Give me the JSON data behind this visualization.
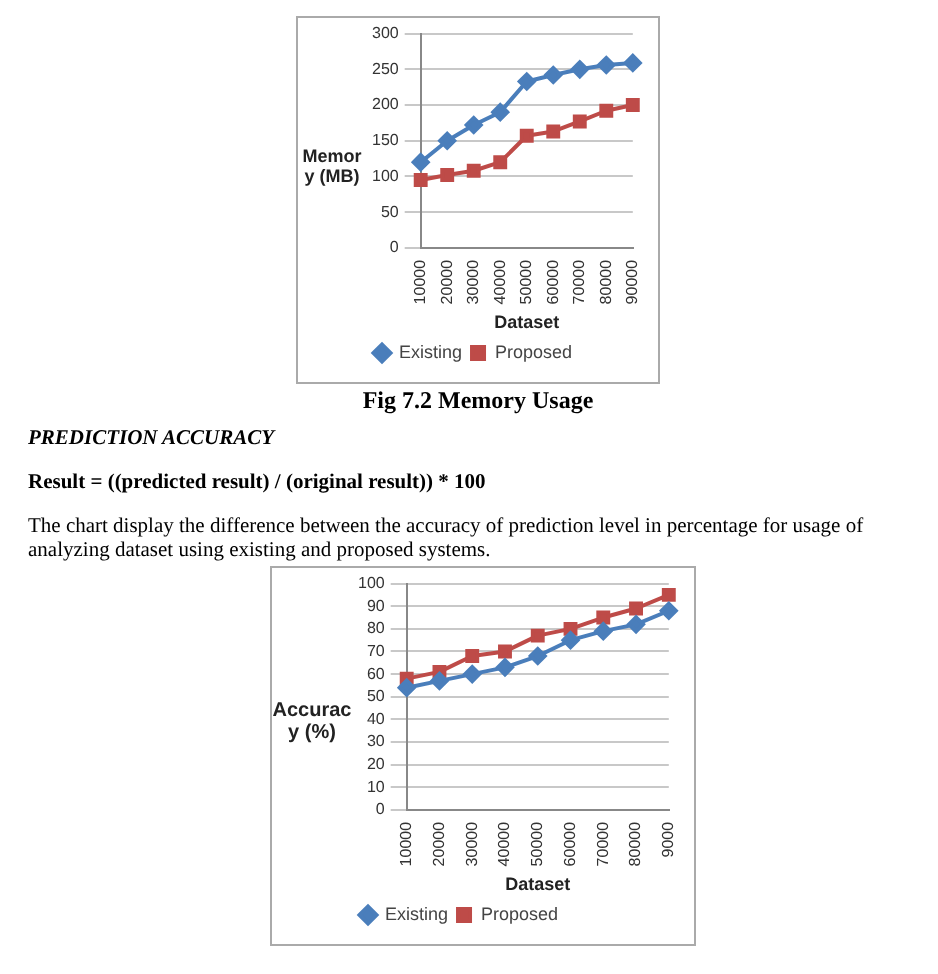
{
  "chart_data": [
    {
      "type": "line",
      "ylabel": "Memory (MB)",
      "xlabel": "Dataset",
      "categories": [
        "10000",
        "20000",
        "30000",
        "40000",
        "50000",
        "60000",
        "70000",
        "80000",
        "90000"
      ],
      "ylim": [
        0,
        300
      ],
      "yticks": [
        0,
        50,
        100,
        150,
        200,
        250,
        300
      ],
      "grid": "y",
      "legend": "bottom left",
      "annotations": [
        "Fig 7.2 Memory Usage"
      ],
      "series": [
        {
          "name": "Existing",
          "color": "#4a7ebb",
          "marker": "diamond",
          "values": [
            120,
            150,
            172,
            190,
            233,
            242,
            250,
            256,
            259
          ]
        },
        {
          "name": "Proposed",
          "color": "#be4b48",
          "marker": "square",
          "values": [
            95,
            102,
            108,
            120,
            157,
            163,
            177,
            192,
            200
          ]
        }
      ]
    },
    {
      "type": "line",
      "title": "PREDICTION ACCURACY",
      "subtitle": "Result = ((predicted result) / (original result)) * 100",
      "annotations": [
        "The chart display the difference between the accuracy of prediction level in percentage for usage of analyzing dataset using existing and proposed systems."
      ],
      "ylabel": "Accuracy (%)",
      "xlabel": "Dataset",
      "categories": [
        "10000",
        "20000",
        "30000",
        "40000",
        "50000",
        "60000",
        "70000",
        "80000",
        "9000"
      ],
      "ylim": [
        0,
        100
      ],
      "yticks": [
        0,
        10,
        20,
        30,
        40,
        50,
        60,
        70,
        80,
        90,
        100
      ],
      "grid": "y",
      "legend": "bottom left",
      "series": [
        {
          "name": "Existing",
          "color": "#4a7ebb",
          "marker": "diamond",
          "values": [
            54,
            57,
            60,
            63,
            68,
            75,
            79,
            82,
            88
          ]
        },
        {
          "name": "Proposed",
          "color": "#be4b48",
          "marker": "square",
          "values": [
            58,
            61,
            68,
            70,
            77,
            80,
            85,
            89,
            95
          ]
        }
      ]
    }
  ]
}
